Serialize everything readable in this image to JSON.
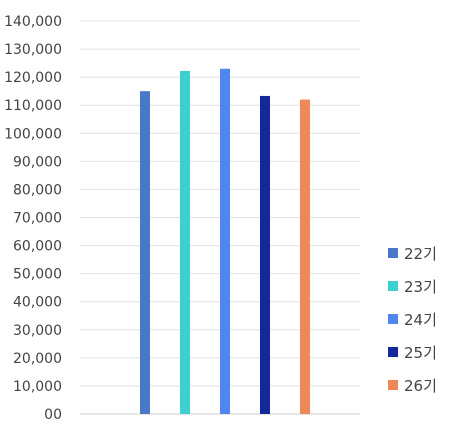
{
  "chart_data": {
    "type": "bar",
    "title": "",
    "xlabel": "",
    "ylabel": "",
    "ylim": [
      0,
      140000
    ],
    "yticks": [
      {
        "value": 0,
        "label": "00"
      },
      {
        "value": 10000,
        "label": "10,000"
      },
      {
        "value": 20000,
        "label": "20,000"
      },
      {
        "value": 30000,
        "label": "30,000"
      },
      {
        "value": 40000,
        "label": "40,000"
      },
      {
        "value": 50000,
        "label": "50,000"
      },
      {
        "value": 60000,
        "label": "60,000"
      },
      {
        "value": 70000,
        "label": "70,000"
      },
      {
        "value": 80000,
        "label": "80,000"
      },
      {
        "value": 90000,
        "label": "90,000"
      },
      {
        "value": 100000,
        "label": "100,000"
      },
      {
        "value": 110000,
        "label": "110,000"
      },
      {
        "value": 120000,
        "label": "120,000"
      },
      {
        "value": 130000,
        "label": "130,000"
      },
      {
        "value": 140000,
        "label": "140,000"
      }
    ],
    "grid": true,
    "legend_position": "right",
    "series": [
      {
        "name": "22기",
        "value": 115000,
        "color": "#4a78c9"
      },
      {
        "name": "23기",
        "value": 122200,
        "color": "#3ecfd0"
      },
      {
        "name": "24기",
        "value": 123000,
        "color": "#4f86ef"
      },
      {
        "name": "25기",
        "value": 113300,
        "color": "#13289a"
      },
      {
        "name": "26기",
        "value": 112000,
        "color": "#ee8856"
      }
    ]
  }
}
